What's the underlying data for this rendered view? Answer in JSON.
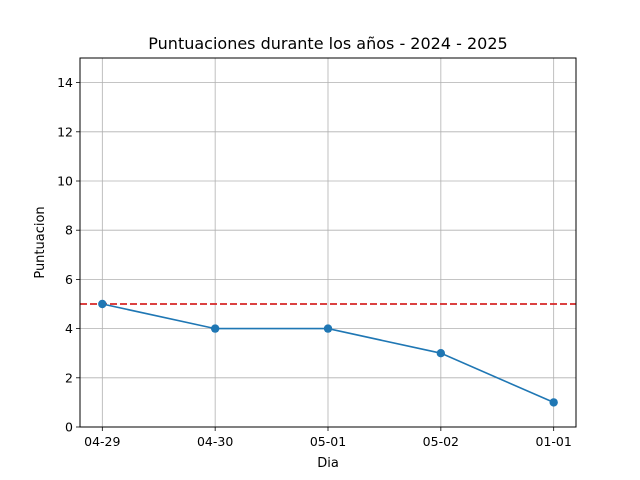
{
  "chart_data": {
    "type": "line",
    "title": "Puntuaciones durante los años - 2024 - 2025",
    "xlabel": "Dia",
    "ylabel": "Puntuacion",
    "categories": [
      "04-29",
      "04-30",
      "05-01",
      "05-02",
      "01-01"
    ],
    "series": [
      {
        "values": [
          5,
          4,
          4,
          3,
          1
        ],
        "color": "#1f77b4",
        "marker": "circle"
      }
    ],
    "reference_line": {
      "y": 5,
      "color": "#d62728",
      "style": "dashed"
    },
    "ylim": [
      0,
      15
    ],
    "yticks": [
      0,
      2,
      4,
      6,
      8,
      10,
      12,
      14
    ],
    "grid": true,
    "legend": "none"
  }
}
